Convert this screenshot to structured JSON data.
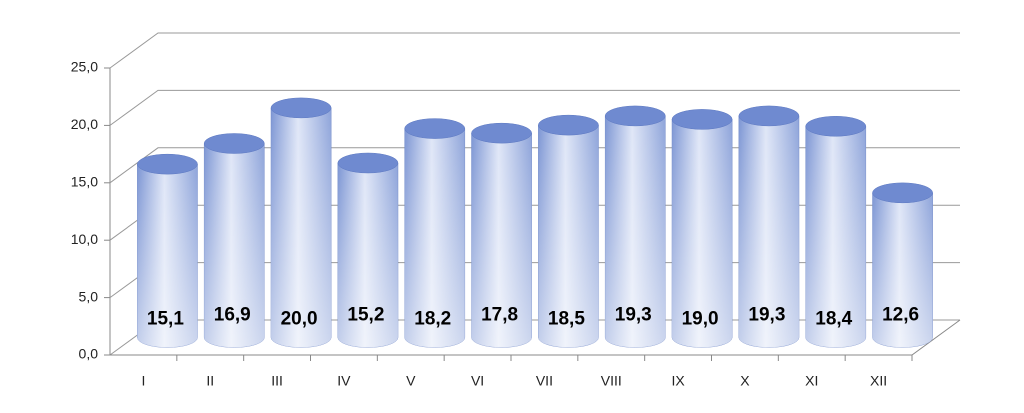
{
  "chart_data": {
    "type": "bar3d",
    "categories": [
      "I",
      "II",
      "III",
      "IV",
      "V",
      "VI",
      "VII",
      "VIII",
      "IX",
      "X",
      "XI",
      "XII"
    ],
    "values": [
      15.1,
      16.9,
      20.0,
      15.2,
      18.2,
      17.8,
      18.5,
      19.3,
      19.0,
      19.3,
      18.4,
      12.6
    ],
    "value_labels": [
      "15,1",
      "16,9",
      "20,0",
      "15,2",
      "18,2",
      "17,8",
      "18,5",
      "19,3",
      "19,0",
      "19,3",
      "18,4",
      "12,6"
    ],
    "color": "#8aa2dc",
    "ylim": [
      0,
      25
    ],
    "yticks": [
      {
        "value": 0,
        "label": "0,0"
      },
      {
        "value": 5,
        "label": "5,0"
      },
      {
        "value": 10,
        "label": "10,0"
      },
      {
        "value": 15,
        "label": "15,0"
      },
      {
        "value": 20,
        "label": "20,0"
      },
      {
        "value": 25,
        "label": "25,0"
      }
    ],
    "grid": true
  }
}
